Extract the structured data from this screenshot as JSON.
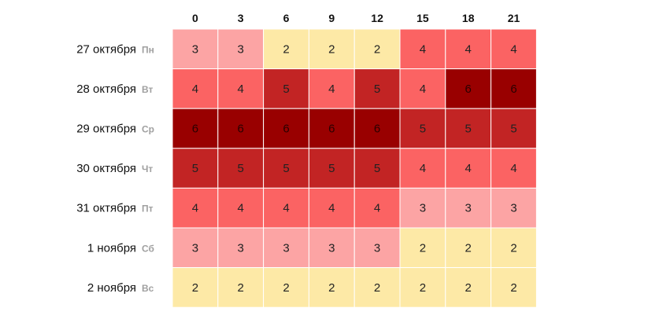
{
  "chart_data": {
    "type": "heatmap",
    "title": "",
    "x": [
      "0",
      "3",
      "6",
      "9",
      "12",
      "15",
      "18",
      "21"
    ],
    "rows": [
      {
        "date": "27 октября",
        "weekday": "Пн",
        "values": [
          3,
          3,
          2,
          2,
          2,
          4,
          4,
          4
        ]
      },
      {
        "date": "28 октября",
        "weekday": "Вт",
        "values": [
          4,
          4,
          5,
          4,
          5,
          4,
          6,
          6
        ]
      },
      {
        "date": "29 октября",
        "weekday": "Ср",
        "values": [
          6,
          6,
          6,
          6,
          6,
          5,
          5,
          5
        ]
      },
      {
        "date": "30 октября",
        "weekday": "Чт",
        "values": [
          5,
          5,
          5,
          5,
          5,
          4,
          4,
          4
        ]
      },
      {
        "date": "31 октября",
        "weekday": "Пт",
        "values": [
          4,
          4,
          4,
          4,
          4,
          3,
          3,
          3
        ]
      },
      {
        "date": "1 ноября",
        "weekday": "Сб",
        "values": [
          3,
          3,
          3,
          3,
          3,
          2,
          2,
          2
        ]
      },
      {
        "date": "2 ноября",
        "weekday": "Вс",
        "values": [
          2,
          2,
          2,
          2,
          2,
          2,
          2,
          2
        ]
      }
    ],
    "color_scale": {
      "2": "#fde9a6",
      "3": "#fca4a4",
      "4": "#fb6363",
      "5": "#c22424",
      "6": "#990000"
    },
    "grid": true,
    "legend": "none"
  }
}
